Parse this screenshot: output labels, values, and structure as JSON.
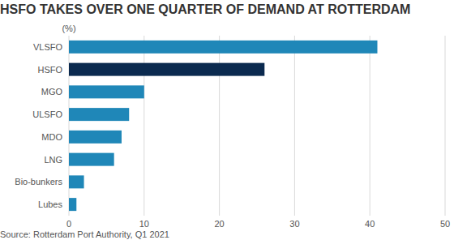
{
  "chart_data": {
    "type": "bar",
    "orientation": "horizontal",
    "title": "HSFO TAKES OVER ONE QUARTER OF DEMAND AT ROTTERDAM",
    "xlabel": "(%)",
    "source": "Source: Rotterdam Port Authority, Q1 2021",
    "categories": [
      "VLSFO",
      "HSFO",
      "MGO",
      "ULSFO",
      "MDO",
      "LNG",
      "Bio-bunkers",
      "Lubes"
    ],
    "values": [
      41,
      26,
      10,
      8,
      7,
      6,
      2,
      1
    ],
    "colors": [
      "#1f87b8",
      "#0b2a4f",
      "#1f87b8",
      "#1f87b8",
      "#1f87b8",
      "#1f87b8",
      "#1f87b8",
      "#1f87b8"
    ],
    "xlim": [
      0,
      50
    ],
    "xticks": [
      0,
      10,
      20,
      30,
      40,
      50
    ],
    "grid": true
  }
}
